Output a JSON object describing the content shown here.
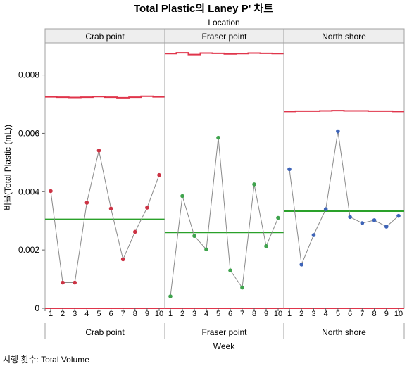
{
  "chart_data": {
    "type": "line",
    "title": "Total Plastic의 Laney P' 차트",
    "panel_group_label": "Location",
    "ylabel": "비율(Total Plastic (mL))",
    "xlabel": "Week",
    "footnote": "시행 횟수: Total Volume",
    "ylim": [
      0,
      0.0091
    ],
    "yticks": [
      0,
      0.002,
      0.004,
      0.006,
      0.008
    ],
    "ytick_labels": [
      "0",
      "0.002",
      "0.004",
      "0.006",
      "0.008"
    ],
    "x": [
      1,
      2,
      3,
      4,
      5,
      6,
      7,
      8,
      9,
      10
    ],
    "grid": false,
    "panels": [
      {
        "name": "Crab point",
        "point_color": "#cc3344",
        "values": [
          0.00402,
          0.00088,
          0.00088,
          0.00362,
          0.00541,
          0.00342,
          0.00168,
          0.00262,
          0.00345,
          0.00457
        ],
        "center_line": 0.00305,
        "ucl": [
          0.00725,
          0.00724,
          0.00723,
          0.00724,
          0.00726,
          0.00724,
          0.00722,
          0.00724,
          0.00727,
          0.00725
        ],
        "lcl": 0
      },
      {
        "name": "Fraser point",
        "point_color": "#3fa34d",
        "values": [
          0.00041,
          0.00385,
          0.00248,
          0.00202,
          0.00585,
          0.0013,
          0.00071,
          0.00425,
          0.00213,
          0.0031
        ],
        "center_line": 0.0026,
        "ucl": [
          0.00873,
          0.00876,
          0.0087,
          0.00875,
          0.00874,
          0.00872,
          0.00873,
          0.00875,
          0.00874,
          0.00873
        ],
        "lcl": 0
      },
      {
        "name": "North shore",
        "point_color": "#3e64b8",
        "values": [
          0.00477,
          0.0015,
          0.00251,
          0.0034,
          0.00607,
          0.00313,
          0.00292,
          0.00302,
          0.0028,
          0.00317
        ],
        "center_line": 0.00333,
        "ucl": [
          0.00675,
          0.00676,
          0.00676,
          0.00677,
          0.00678,
          0.00677,
          0.00677,
          0.00676,
          0.00676,
          0.00675
        ],
        "lcl": 0
      }
    ],
    "colors": {
      "limit_line": "#e0354b",
      "center_line": "#2aa12a",
      "connect_line": "#8a8a8a",
      "panel_border": "#a0a0a0",
      "header_fill": "#eeeeee"
    }
  }
}
